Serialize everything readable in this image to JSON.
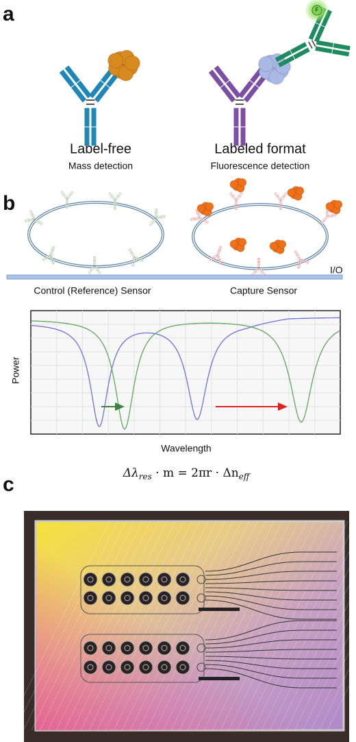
{
  "panels": {
    "a": "a",
    "b": "b",
    "c": "c"
  },
  "panel_a": {
    "left": {
      "title": "Label-free",
      "subtitle": "Mass detection"
    },
    "right": {
      "title": "Labeled format",
      "subtitle": "Fluorescence detection"
    },
    "fluor_tag": "F"
  },
  "panel_b": {
    "io_label": "I/O",
    "left_sensor": "Control (Reference) Sensor",
    "right_sensor": "Capture Sensor",
    "y_label": "Power",
    "x_label": "Wavelength",
    "equation": {
      "lhs": "Δλ",
      "lhs_sub": "res",
      "middle": " · m = 2πr · Δn",
      "rhs_sub": "eff"
    }
  }
}
